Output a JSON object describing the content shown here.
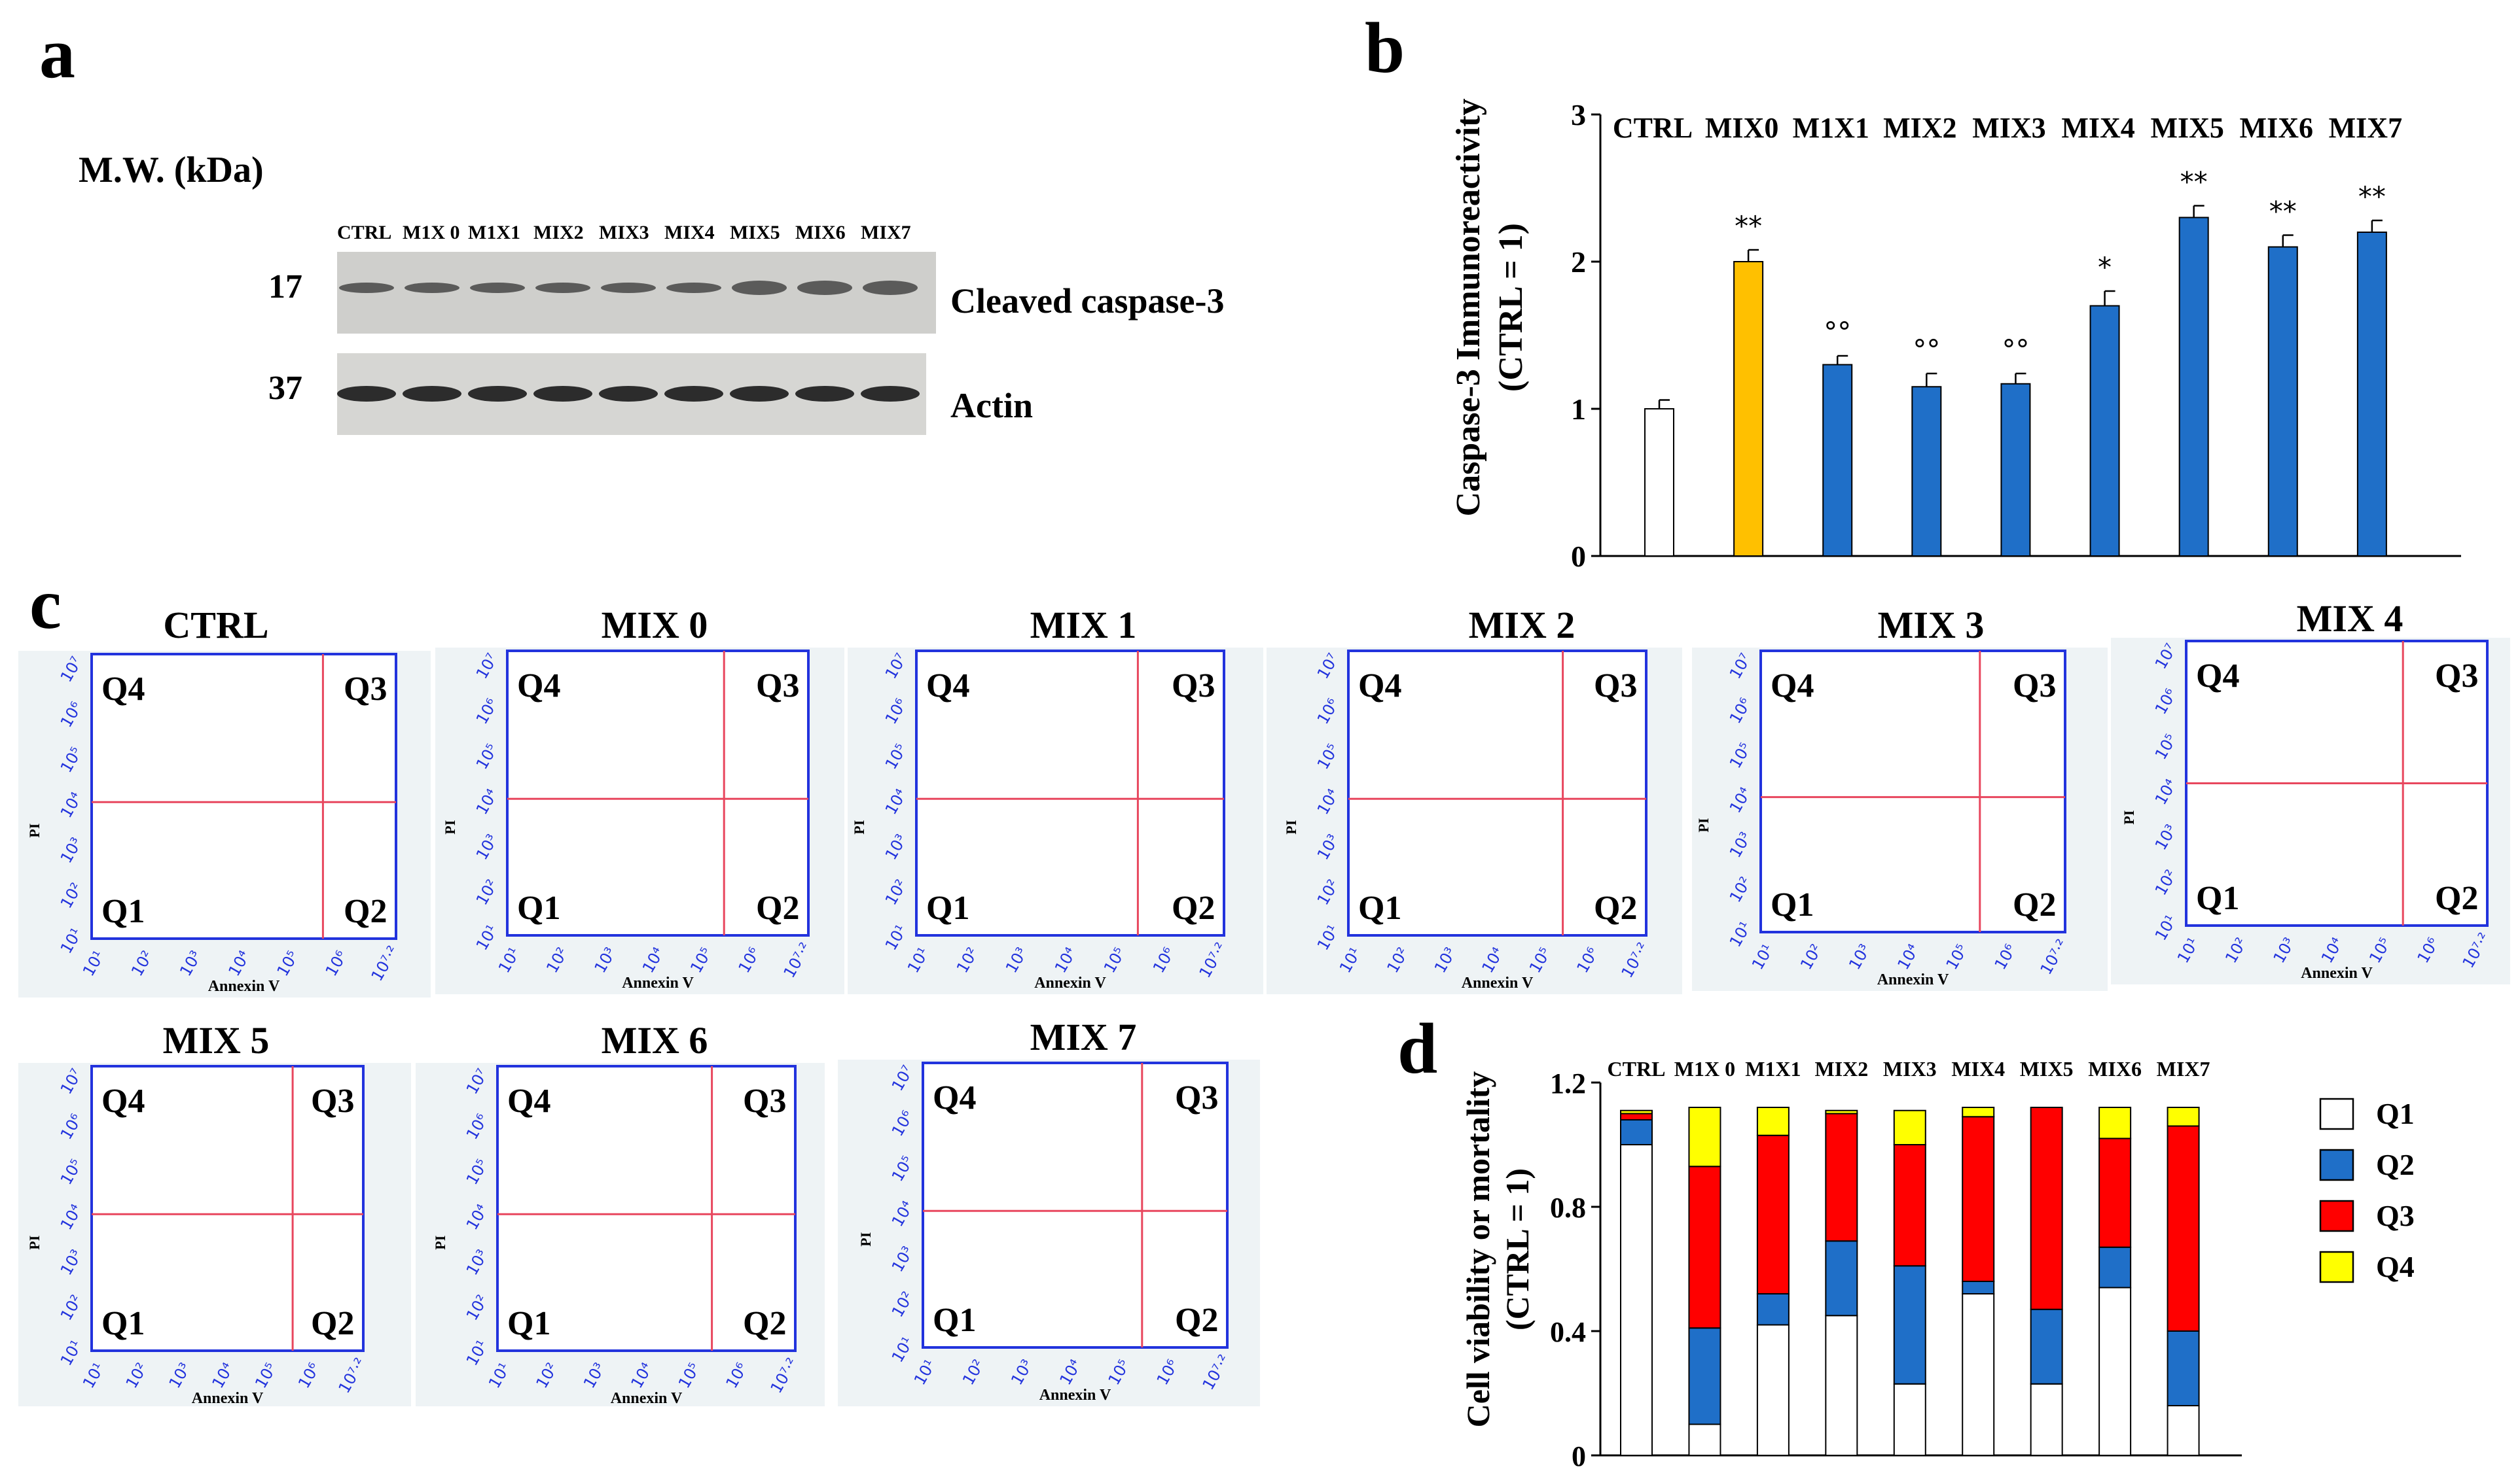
{
  "panels": {
    "a": {
      "label": "a",
      "mw_label": "M.W.  (kDa)",
      "lanes": [
        "CTRL",
        "M1X 0",
        "M1X1",
        "MIX2",
        "MIX3",
        "MIX4",
        "MIX5",
        "MIX6",
        "MIX7"
      ],
      "band_caspase_mw": "17",
      "band_caspase_label": "Cleaved caspase-3",
      "band_actin_mw": "37",
      "band_actin_label": "Actin"
    },
    "b": {
      "label": "b"
    },
    "c": {
      "label": "c",
      "quadrant_labels": [
        "Q1",
        "Q2",
        "Q3",
        "Q4"
      ],
      "x_axis_label": "Annexin V",
      "y_axis_label": "PI",
      "x_ticks": [
        "10¹",
        "10²",
        "10³",
        "10⁴",
        "10⁵",
        "10⁶",
        "10⁷·²"
      ],
      "y_ticks": [
        "10¹",
        "10²",
        "10³",
        "10⁴",
        "10⁵",
        "10⁶",
        "10⁷"
      ],
      "plots": [
        {
          "title": "CTRL"
        },
        {
          "title": "MIX 0"
        },
        {
          "title": "MIX 1"
        },
        {
          "title": "MIX 2"
        },
        {
          "title": "MIX 3"
        },
        {
          "title": "MIX 4"
        },
        {
          "title": "MIX 5"
        },
        {
          "title": "MIX 6"
        },
        {
          "title": "MIX 7"
        }
      ]
    },
    "d": {
      "label": "d"
    }
  },
  "chart_data": [
    {
      "type": "bar",
      "panel": "b",
      "title": "",
      "ylabel": "Caspase-3  Immunoreactivity",
      "ylabel2": "(CTRL = 1)",
      "categories": [
        "CTRL",
        "MIX0",
        "M1X1",
        "MIX2",
        "MIX3",
        "MIX4",
        "MIX5",
        "MIX6",
        "MIX7"
      ],
      "values": [
        1.0,
        2.0,
        1.3,
        1.15,
        1.17,
        1.7,
        2.3,
        2.1,
        2.2
      ],
      "errors": [
        0.06,
        0.08,
        0.06,
        0.09,
        0.07,
        0.1,
        0.08,
        0.08,
        0.08
      ],
      "annotations": [
        "",
        "**",
        "°°",
        "°°",
        "°°",
        "*",
        "**",
        "**",
        "**"
      ],
      "colors": [
        "#ffffff",
        "#ffc000",
        "#1f6fc8",
        "#1f6fc8",
        "#1f6fc8",
        "#1f6fc8",
        "#1f6fc8",
        "#1f6fc8",
        "#1f6fc8"
      ],
      "ylim": [
        0,
        3
      ],
      "yticks": [
        "0",
        "1",
        "2",
        "3"
      ]
    },
    {
      "type": "bar",
      "stacked": true,
      "panel": "d",
      "title": "",
      "ylabel": "Cell viability or mortality",
      "ylabel2": "(CTRL = 1)",
      "categories": [
        "CTRL",
        "M1X 0",
        "M1X1",
        "MIX2",
        "MIX3",
        "MIX4",
        "MIX5",
        "MIX6",
        "MIX7"
      ],
      "series": [
        {
          "name": "Q1",
          "color": "#ffffff",
          "values": [
            1.0,
            0.1,
            0.42,
            0.45,
            0.23,
            0.52,
            0.23,
            0.54,
            0.16
          ]
        },
        {
          "name": "Q2",
          "color": "#1f6fc8",
          "values": [
            0.08,
            0.31,
            0.1,
            0.24,
            0.38,
            0.04,
            0.24,
            0.13,
            0.24
          ]
        },
        {
          "name": "Q3",
          "color": "#ff0000",
          "values": [
            0.02,
            0.52,
            0.51,
            0.41,
            0.39,
            0.53,
            0.65,
            0.35,
            0.66
          ]
        },
        {
          "name": "Q4",
          "color": "#ffff00",
          "values": [
            0.01,
            0.19,
            0.09,
            0.01,
            0.11,
            0.03,
            0.0,
            0.1,
            0.06
          ]
        }
      ],
      "ylim": [
        0,
        1.2
      ],
      "yticks": [
        "0",
        "0.4",
        "0.8",
        "1.2"
      ],
      "legend_position": "right"
    }
  ]
}
